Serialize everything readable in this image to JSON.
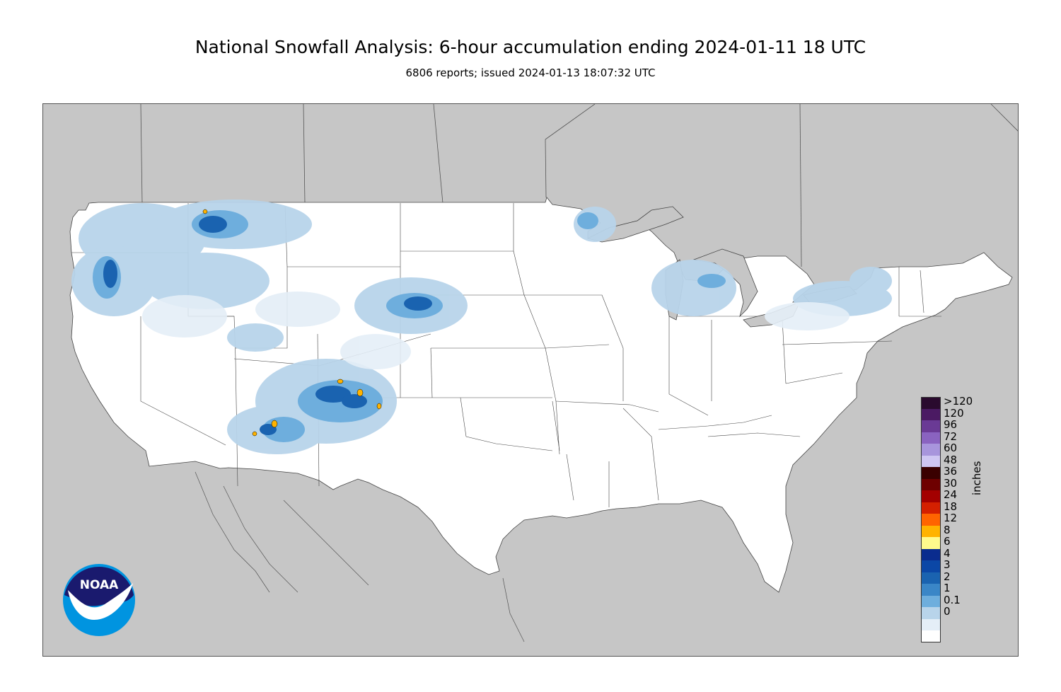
{
  "header": {
    "title": "National Snowfall Analysis: 6-hour accumulation ending 2024-01-11 18 UTC",
    "subtitle": "6806 reports; issued 2024-01-13 18:07:32 UTC"
  },
  "logo": {
    "text": "NOAA",
    "icon": "noaa-logo"
  },
  "legend": {
    "units": "inches",
    "entries": [
      {
        "label": ">120",
        "color": "#2a0a2e"
      },
      {
        "label": "120",
        "color": "#4b1a63"
      },
      {
        "label": "96",
        "color": "#6a3a95"
      },
      {
        "label": "72",
        "color": "#8a63c0"
      },
      {
        "label": "60",
        "color": "#a895dc"
      },
      {
        "label": "48",
        "color": "#cfc6f2"
      },
      {
        "label": "36",
        "color": "#3a0000"
      },
      {
        "label": "30",
        "color": "#6e0000"
      },
      {
        "label": "24",
        "color": "#a30000"
      },
      {
        "label": "18",
        "color": "#d42000"
      },
      {
        "label": "12",
        "color": "#ff6400"
      },
      {
        "label": "8",
        "color": "#ffb300"
      },
      {
        "label": "6",
        "color": "#fffa8c"
      },
      {
        "label": "4",
        "color": "#0a2c8e"
      },
      {
        "label": "3",
        "color": "#0b47a6"
      },
      {
        "label": "2",
        "color": "#1a63b0"
      },
      {
        "label": "1",
        "color": "#3a86c7"
      },
      {
        "label": "0.1",
        "color": "#6eaedd"
      },
      {
        "label": "0",
        "color": "#b8d4ea"
      },
      {
        "label": "",
        "color": "#e4eef7"
      },
      {
        "label": "",
        "color": "#ffffff"
      }
    ]
  },
  "map": {
    "ocean_color": "#c6c6c6",
    "land_color": "#ffffff",
    "border_color": "#555555"
  }
}
